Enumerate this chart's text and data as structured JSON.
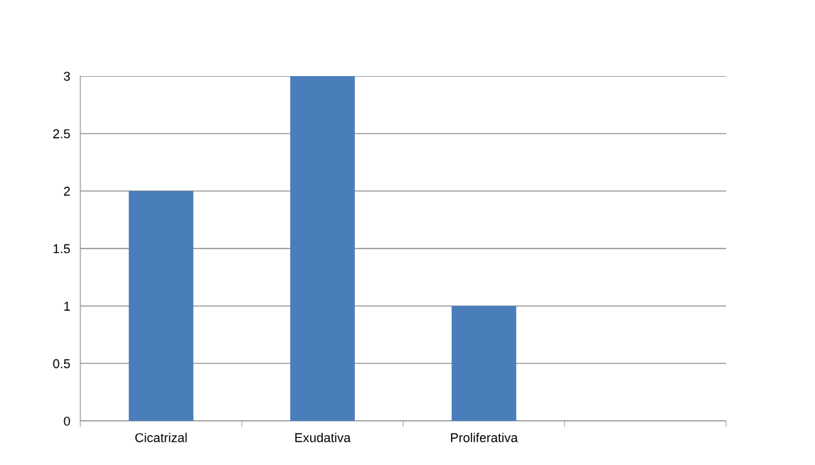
{
  "chart_data": {
    "type": "bar",
    "categories": [
      "Cicatrizal",
      "Exudativa",
      "Proliferativa",
      null
    ],
    "values": [
      2,
      3,
      1,
      null
    ],
    "color": "#4a7ebb",
    "ylim": [
      0,
      3
    ],
    "yticks": [
      0,
      0.5,
      1,
      1.5,
      2,
      2.5,
      3
    ],
    "grid": "y",
    "legend": false
  }
}
